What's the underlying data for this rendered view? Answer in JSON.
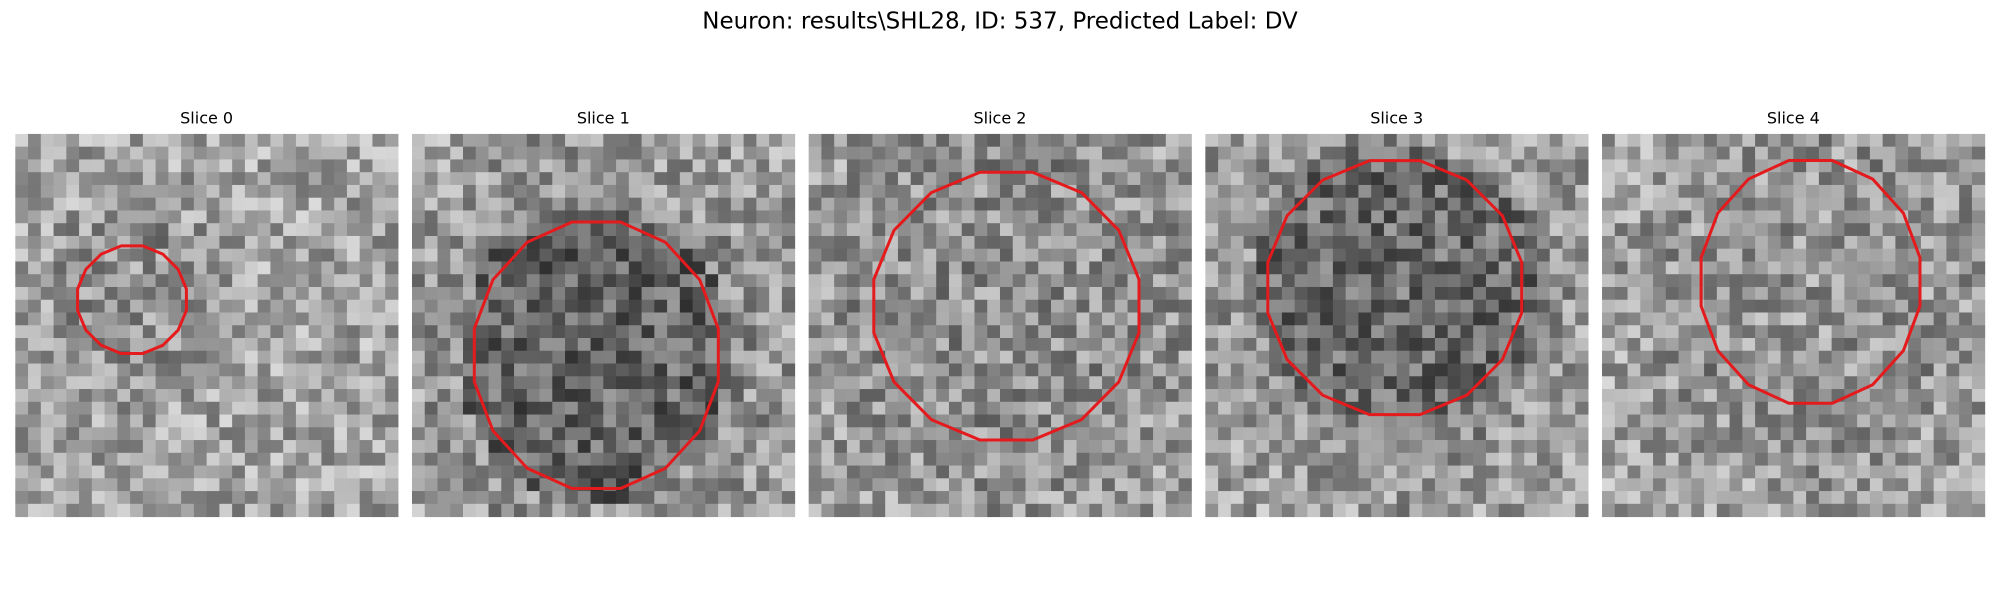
{
  "title": "Neuron: results\\SHL28, ID: 537, Predicted Label: DV",
  "panels": [
    {
      "title": "Slice 0"
    },
    {
      "title": "Slice 1"
    },
    {
      "title": "Slice 2"
    },
    {
      "title": "Slice 3"
    },
    {
      "title": "Slice 4"
    }
  ]
}
